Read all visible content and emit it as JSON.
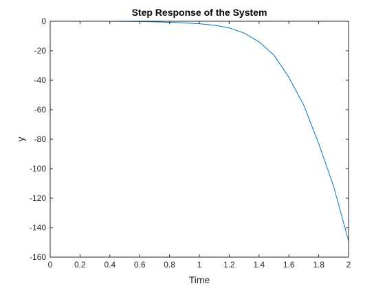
{
  "chart_data": {
    "type": "line",
    "title": "Step Response of the System",
    "xlabel": "Time",
    "ylabel": "y",
    "xlim": [
      0,
      2
    ],
    "ylim": [
      -160,
      0
    ],
    "grid": false,
    "legend": "none",
    "xticks": [
      0,
      0.2,
      0.4,
      0.6,
      0.8,
      1,
      1.2,
      1.4,
      1.6,
      1.8,
      2
    ],
    "xtick_labels": [
      "0",
      "0.2",
      "0.4",
      "0.6",
      "0.8",
      "1",
      "1.2",
      "1.4",
      "1.6",
      "1.8",
      "2"
    ],
    "yticks": [
      0,
      -20,
      -40,
      -60,
      -80,
      -100,
      -120,
      -140,
      -160
    ],
    "ytick_labels": [
      "0",
      "-20",
      "-40",
      "-60",
      "-80",
      "-100",
      "-120",
      "-140",
      "-160"
    ],
    "series": [
      {
        "color": "#0072BD",
        "x": [
          0,
          0.1,
          0.2,
          0.3,
          0.4,
          0.5,
          0.6,
          0.7,
          0.8,
          0.9,
          1.0,
          1.1,
          1.2,
          1.3,
          1.4,
          1.5,
          1.6,
          1.7,
          1.8,
          1.9,
          2.0
        ],
        "y": [
          0,
          0,
          0,
          0,
          0,
          -0.1,
          -0.2,
          -0.4,
          -0.7,
          -1.1,
          -1.7,
          -2.7,
          -4.5,
          -8,
          -14,
          -23,
          -38,
          -57,
          -83,
          -112,
          -149
        ]
      }
    ]
  }
}
